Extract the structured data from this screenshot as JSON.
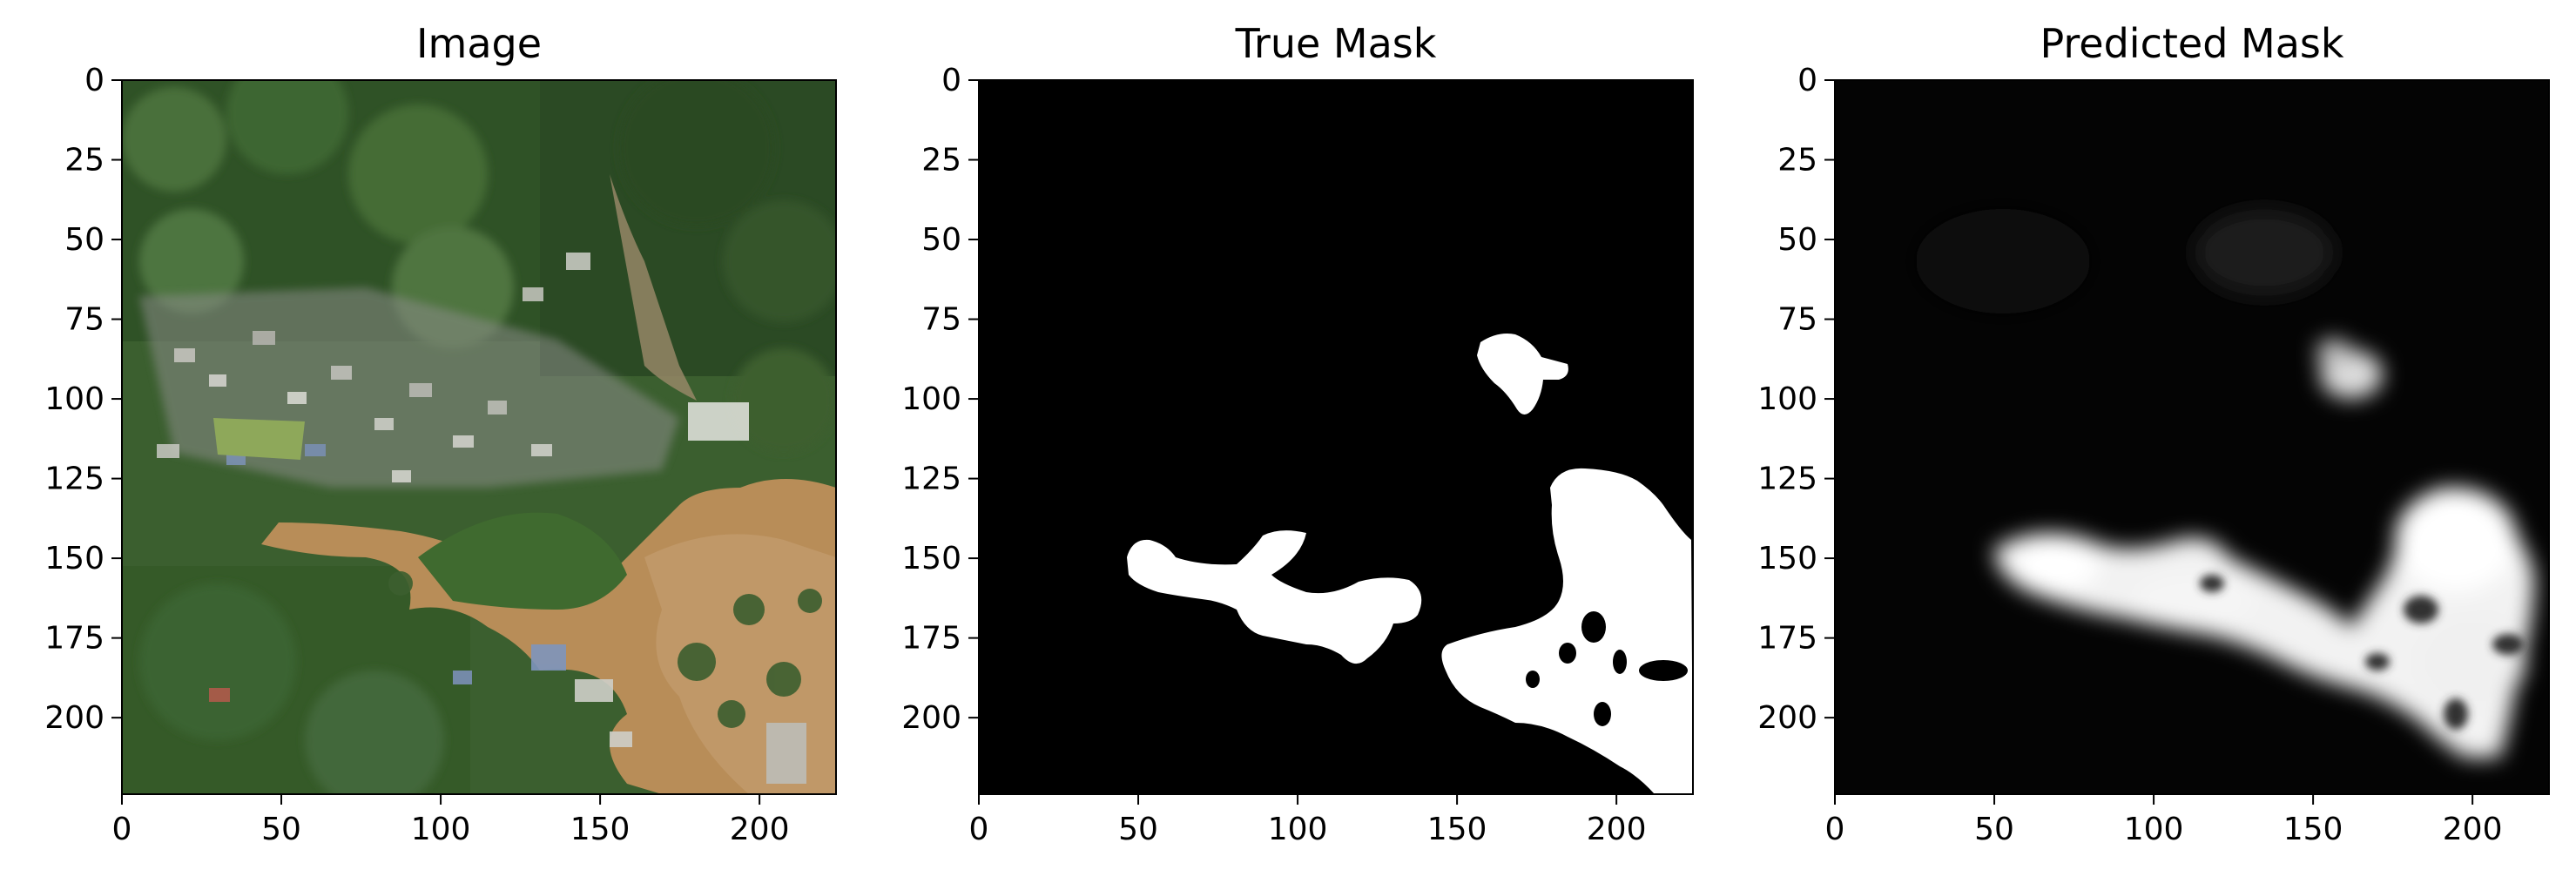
{
  "panels": [
    {
      "title": "Image",
      "content": "aerial-flood-photo",
      "xticks": [
        "0",
        "50",
        "100",
        "150",
        "200"
      ],
      "yticks": [
        "0",
        "25",
        "50",
        "75",
        "100",
        "125",
        "150",
        "175",
        "200"
      ]
    },
    {
      "title": "True Mask",
      "content": "binary-mask",
      "xticks": [
        "0",
        "50",
        "100",
        "150",
        "200"
      ],
      "yticks": [
        "0",
        "25",
        "50",
        "75",
        "100",
        "125",
        "150",
        "175",
        "200"
      ]
    },
    {
      "title": "Predicted Mask",
      "content": "soft-mask",
      "xticks": [
        "0",
        "50",
        "100",
        "150",
        "200"
      ],
      "yticks": [
        "0",
        "25",
        "50",
        "75",
        "100",
        "125",
        "150",
        "175",
        "200"
      ]
    }
  ],
  "axis_range": [
    0,
    224
  ],
  "colors": {
    "mask_background": "#000000",
    "mask_foreground": "#ffffff",
    "flood_water": "#b98c55",
    "vegetation": "#3f6a2f"
  }
}
